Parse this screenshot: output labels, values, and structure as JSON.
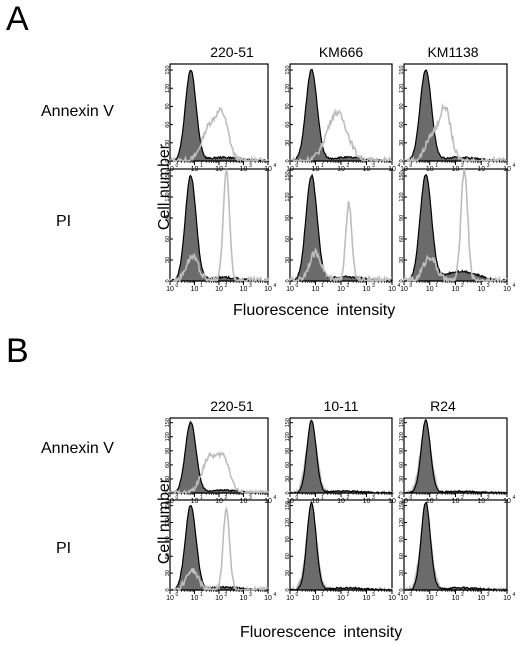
{
  "figure": {
    "panels": [
      {
        "letter": "A",
        "columns": [
          "220-51",
          "KM666",
          "KM1138"
        ],
        "rows": [
          "Annexin V",
          "PI"
        ],
        "ylabel": "Cell number",
        "xlabel": "Fluorescence intensity"
      },
      {
        "letter": "B",
        "columns": [
          "220-51",
          "10-11",
          "R24"
        ],
        "rows": [
          "Annexin V",
          "PI"
        ],
        "ylabel": "Cell number",
        "xlabel": "Fluorescence intensity"
      }
    ]
  },
  "chart_data": [
    {
      "panel": "A",
      "type": "area",
      "x_scale": "log",
      "xlim": [
        1,
        10000
      ],
      "x_ticks": [
        "10^0",
        "10^1",
        "10^2",
        "10^3",
        "10^4"
      ],
      "ylim": [
        0,
        160
      ],
      "y_ticks": [
        0,
        30,
        60,
        90,
        120,
        150
      ],
      "grid": false,
      "colors": {
        "control_fill": "#6b6b6b",
        "control_line": "#000000",
        "treated_line": "#bdbdbd"
      },
      "subplots": [
        {
          "column": "220-51",
          "row": "Annexin V",
          "control": {
            "peak_x": 7,
            "peak_y": 150,
            "width": 0.22,
            "tail": 6
          },
          "treated": [
            {
              "peak_x": 40,
              "peak_y": 55,
              "width": 0.3
            },
            {
              "peak_x": 140,
              "peak_y": 70,
              "width": 0.25
            }
          ]
        },
        {
          "column": "KM666",
          "row": "Annexin V",
          "control": {
            "peak_x": 7,
            "peak_y": 150,
            "width": 0.22,
            "tail": 6
          },
          "treated": [
            {
              "peak_x": 70,
              "peak_y": 80,
              "width": 0.4
            }
          ]
        },
        {
          "column": "KM1138",
          "row": "Annexin V",
          "control": {
            "peak_x": 7,
            "peak_y": 150,
            "width": 0.22,
            "tail": 6
          },
          "treated": [
            {
              "peak_x": 40,
              "peak_y": 85,
              "width": 0.22
            },
            {
              "peak_x": 12,
              "peak_y": 40,
              "width": 0.25
            }
          ]
        },
        {
          "column": "220-51",
          "row": "PI",
          "control": {
            "peak_x": 7,
            "peak_y": 150,
            "width": 0.22,
            "tail": 5
          },
          "treated": [
            {
              "peak_x": 200,
              "peak_y": 155,
              "width": 0.13
            },
            {
              "peak_x": 8,
              "peak_y": 35,
              "width": 0.25
            }
          ]
        },
        {
          "column": "KM666",
          "row": "PI",
          "control": {
            "peak_x": 7,
            "peak_y": 150,
            "width": 0.22,
            "tail": 6
          },
          "treated": [
            {
              "peak_x": 200,
              "peak_y": 110,
              "width": 0.12
            },
            {
              "peak_x": 10,
              "peak_y": 40,
              "width": 0.25
            }
          ]
        },
        {
          "column": "KM1138",
          "row": "PI",
          "control": {
            "peak_x": 7,
            "peak_y": 150,
            "width": 0.22,
            "tail": 14
          },
          "treated": [
            {
              "peak_x": 220,
              "peak_y": 160,
              "width": 0.13
            },
            {
              "peak_x": 10,
              "peak_y": 35,
              "width": 0.25
            }
          ]
        }
      ]
    },
    {
      "panel": "B",
      "type": "area",
      "x_scale": "log",
      "xlim": [
        1,
        10000
      ],
      "x_ticks": [
        "10^0",
        "10^1",
        "10^2",
        "10^3",
        "10^4"
      ],
      "ylim": [
        0,
        160
      ],
      "y_ticks": [
        0,
        30,
        60,
        90,
        120,
        150
      ],
      "grid": false,
      "colors": {
        "control_fill": "#6b6b6b",
        "control_line": "#000000",
        "treated_line": "#bdbdbd"
      },
      "subplots": [
        {
          "column": "220-51",
          "row": "Annexin V",
          "control": {
            "peak_x": 7,
            "peak_y": 150,
            "width": 0.22,
            "tail": 6
          },
          "treated": [
            {
              "peak_x": 40,
              "peak_y": 75,
              "width": 0.3
            },
            {
              "peak_x": 160,
              "peak_y": 70,
              "width": 0.25
            }
          ]
        },
        {
          "column": "10-11",
          "row": "Annexin V",
          "control": {
            "peak_x": 7,
            "peak_y": 155,
            "width": 0.18,
            "tail": 4
          },
          "treated": [
            {
              "peak_x": 7,
              "peak_y": 140,
              "width": 0.22,
              "filled": true
            }
          ]
        },
        {
          "column": "R24",
          "row": "Annexin V",
          "control": {
            "peak_x": 7,
            "peak_y": 155,
            "width": 0.18,
            "tail": 4
          },
          "treated": [
            {
              "peak_x": 7,
              "peak_y": 140,
              "width": 0.22,
              "filled": true
            }
          ]
        },
        {
          "column": "220-51",
          "row": "PI",
          "control": {
            "peak_x": 7,
            "peak_y": 150,
            "width": 0.22,
            "tail": 5
          },
          "treated": [
            {
              "peak_x": 200,
              "peak_y": 145,
              "width": 0.13
            },
            {
              "peak_x": 8,
              "peak_y": 35,
              "width": 0.25
            }
          ]
        },
        {
          "column": "10-11",
          "row": "PI",
          "control": {
            "peak_x": 7,
            "peak_y": 155,
            "width": 0.18,
            "tail": 4
          },
          "treated": [
            {
              "peak_x": 7,
              "peak_y": 135,
              "width": 0.22,
              "filled": true
            }
          ]
        },
        {
          "column": "R24",
          "row": "PI",
          "control": {
            "peak_x": 7,
            "peak_y": 155,
            "width": 0.18,
            "tail": 4
          },
          "treated": [
            {
              "peak_x": 7,
              "peak_y": 135,
              "width": 0.22,
              "filled": true
            }
          ]
        }
      ]
    }
  ]
}
